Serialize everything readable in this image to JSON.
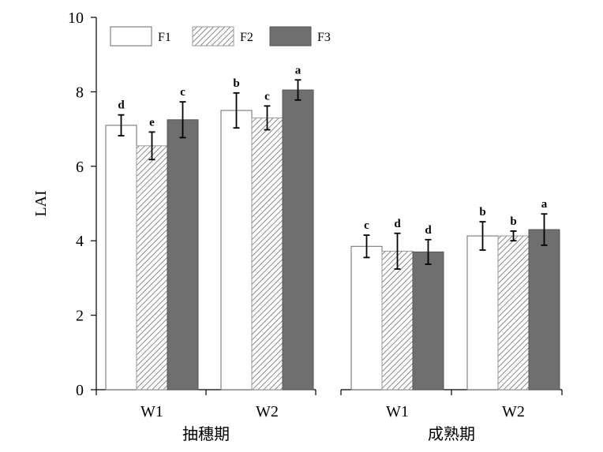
{
  "chart_data": {
    "type": "bar",
    "ylabel": "LAI",
    "ylim": [
      0,
      10
    ],
    "yticks": [
      0,
      2,
      4,
      6,
      8,
      10
    ],
    "grid": false,
    "legend_position": "top-left",
    "series": [
      {
        "name": "F1",
        "pattern": "white",
        "color": "#ffffff"
      },
      {
        "name": "F2",
        "pattern": "hatched",
        "color": "#bdbdbd"
      },
      {
        "name": "F3",
        "pattern": "solid",
        "color": "#6f6f6f"
      }
    ],
    "groups": [
      {
        "label": "抽穗期",
        "subgroups": [
          {
            "label": "W1",
            "values": [
              7.1,
              6.55,
              7.25
            ],
            "errors": [
              0.28,
              0.37,
              0.48
            ],
            "letters": [
              "d",
              "e",
              "c"
            ]
          },
          {
            "label": "W2",
            "values": [
              7.5,
              7.3,
              8.05
            ],
            "errors": [
              0.47,
              0.32,
              0.27
            ],
            "letters": [
              "b",
              "c",
              "a"
            ]
          }
        ]
      },
      {
        "label": "成熟期",
        "subgroups": [
          {
            "label": "W1",
            "values": [
              3.85,
              3.72,
              3.7
            ],
            "errors": [
              0.3,
              0.48,
              0.33
            ],
            "letters": [
              "c",
              "d",
              "d"
            ]
          },
          {
            "label": "W2",
            "values": [
              4.13,
              4.13,
              4.3
            ],
            "errors": [
              0.38,
              0.13,
              0.42
            ],
            "letters": [
              "b",
              "b",
              "a"
            ]
          }
        ]
      }
    ]
  }
}
